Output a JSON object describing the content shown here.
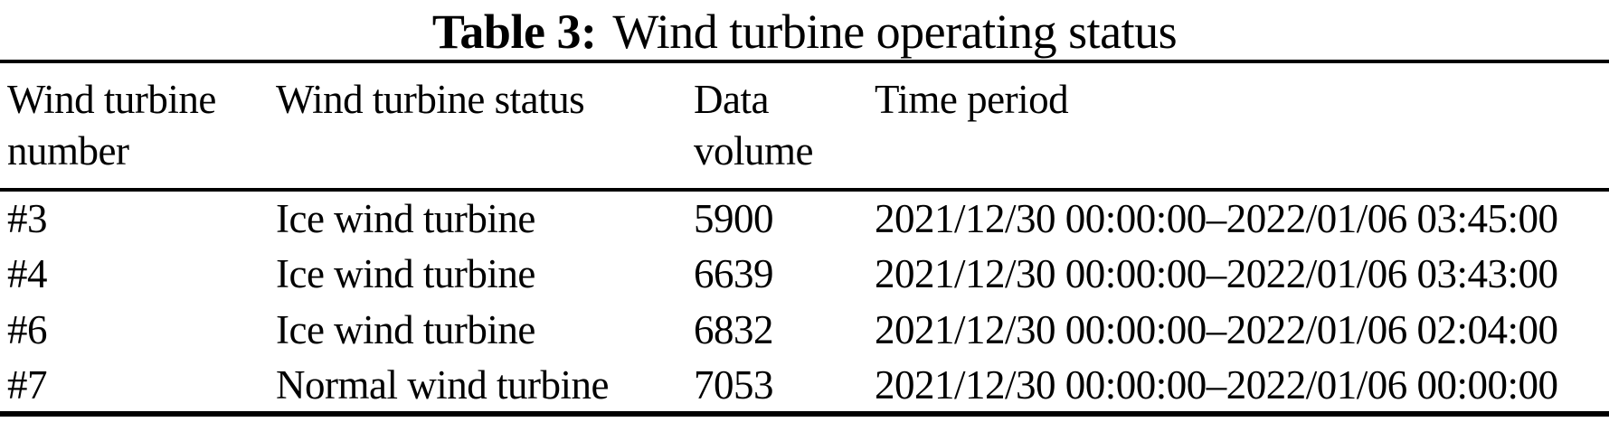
{
  "caption": {
    "label": "Table 3:",
    "title": "Wind turbine operating status"
  },
  "columns": [
    "Wind turbine number",
    "Wind turbine status",
    "Data volume",
    "Time period"
  ],
  "rows": [
    {
      "number": "#3",
      "status": "Ice wind turbine",
      "volume": "5900",
      "period": "2021/12/30 00:00:00–2022/01/06 03:45:00"
    },
    {
      "number": "#4",
      "status": "Ice wind turbine",
      "volume": "6639",
      "period": "2021/12/30 00:00:00–2022/01/06 03:43:00"
    },
    {
      "number": "#6",
      "status": "Ice wind turbine",
      "volume": "6832",
      "period": "2021/12/30 00:00:00–2022/01/06 02:04:00"
    },
    {
      "number": "#7",
      "status": "Normal wind turbine",
      "volume": "7053",
      "period": "2021/12/30 00:00:00–2022/01/06 00:00:00"
    }
  ],
  "colors": {
    "text": "#000000",
    "background": "#ffffff",
    "rule": "#000000"
  }
}
